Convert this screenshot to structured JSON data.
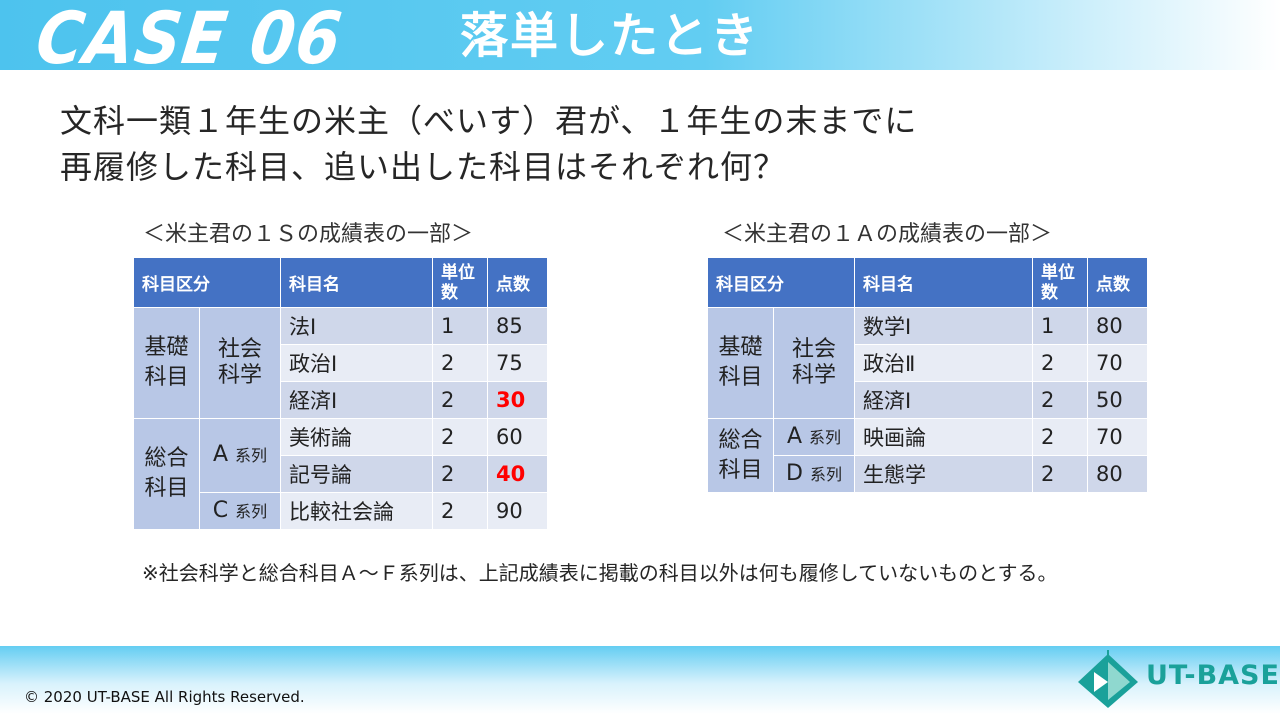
{
  "header": {
    "case_label": "CASE 06",
    "title": "落単したとき"
  },
  "question": {
    "line1": "文科一類１年生の米主（べいす）君が、１年生の末までに",
    "line2": "再履修した科目、追い出した科目はそれぞれ何？"
  },
  "tables": {
    "left": {
      "caption": "＜米主君の１Ｓの成績表の一部＞",
      "headers": {
        "category": "科目区分",
        "subject": "科目名",
        "units": "単位数",
        "score": "点数"
      },
      "groups": [
        {
          "category": "基礎科目",
          "sub": "社会科学",
          "sub_suffix": ""
        },
        {
          "category": "総合科目",
          "sub": "A",
          "sub_suffix": "系列"
        },
        {
          "category": "",
          "sub": "C",
          "sub_suffix": "系列"
        }
      ],
      "rows": [
        {
          "subject": "法Ⅰ",
          "units": "1",
          "score": "85",
          "fail": false
        },
        {
          "subject": "政治Ⅰ",
          "units": "2",
          "score": "75",
          "fail": false
        },
        {
          "subject": "経済Ⅰ",
          "units": "2",
          "score": "30",
          "fail": true
        },
        {
          "subject": "美術論",
          "units": "2",
          "score": "60",
          "fail": false
        },
        {
          "subject": "記号論",
          "units": "2",
          "score": "40",
          "fail": true
        },
        {
          "subject": "比較社会論",
          "units": "2",
          "score": "90",
          "fail": false
        }
      ]
    },
    "right": {
      "caption": "＜米主君の１Ａの成績表の一部＞",
      "headers": {
        "category": "科目区分",
        "subject": "科目名",
        "units": "単位数",
        "score": "点数"
      },
      "groups": [
        {
          "category": "基礎科目",
          "sub": "社会科学",
          "sub_suffix": ""
        },
        {
          "category": "総合科目",
          "sub": "A",
          "sub_suffix": "系列"
        },
        {
          "category": "",
          "sub": "D",
          "sub_suffix": "系列"
        }
      ],
      "rows": [
        {
          "subject": "数学Ⅰ",
          "units": "1",
          "score": "80",
          "fail": false
        },
        {
          "subject": "政治Ⅱ",
          "units": "2",
          "score": "70",
          "fail": false
        },
        {
          "subject": "経済Ⅰ",
          "units": "2",
          "score": "50",
          "fail": false
        },
        {
          "subject": "映画論",
          "units": "2",
          "score": "70",
          "fail": false
        },
        {
          "subject": "生態学",
          "units": "2",
          "score": "80",
          "fail": false
        }
      ]
    }
  },
  "note": "※社会科学と総合科目Ａ～Ｆ系列は、上記成績表に掲載の科目以外は何も履修していないものとする。",
  "footer": {
    "copyright": "© 2020 UT-BASE All Rights Reserved.",
    "logo_text": "UT-BASE"
  },
  "colors": {
    "header_blue": "#4dc3ee",
    "table_header": "#4472c4",
    "fail_red": "#ff0000",
    "logo_teal": "#1aa19a"
  }
}
